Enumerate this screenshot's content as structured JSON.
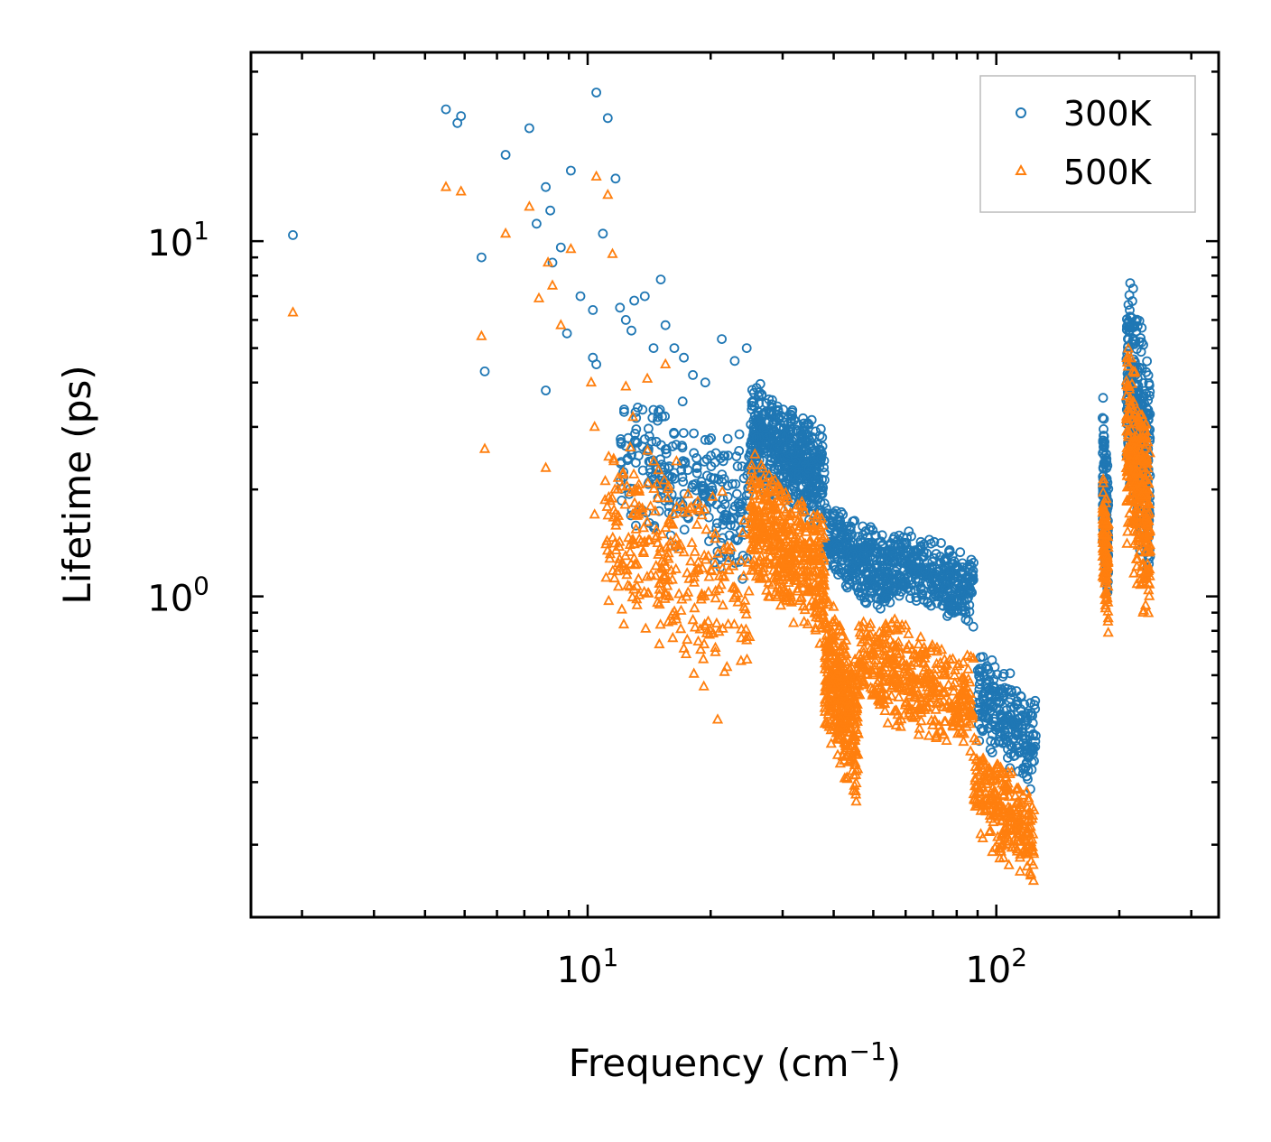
{
  "chart_data": {
    "type": "scatter",
    "xscale": "log",
    "yscale": "log",
    "xlabel": "Frequency (cm",
    "xlabel_sup": "−1",
    "xlabel_end": ")",
    "ylabel": "Lifetime (ps)",
    "xlim": [
      1.5,
      350
    ],
    "ylim": [
      0.125,
      34
    ],
    "xticks": [
      {
        "base": "10",
        "exp": "1",
        "value": 10
      },
      {
        "base": "10",
        "exp": "2",
        "value": 100
      }
    ],
    "yticks": [
      {
        "base": "10",
        "exp": "0",
        "value": 1
      },
      {
        "base": "10",
        "exp": "1",
        "value": 10
      }
    ],
    "legend": {
      "position": "top-right",
      "entries": [
        "300K",
        "500K"
      ]
    },
    "colors": {
      "300K": "#1f77b4",
      "500K": "#ff7f0e"
    },
    "series": [
      {
        "name": "300K",
        "marker": "circle",
        "points": [
          [
            1.9,
            10.4
          ],
          [
            4.5,
            23.5
          ],
          [
            4.8,
            21.5
          ],
          [
            4.9,
            22.5
          ],
          [
            5.5,
            9.0
          ],
          [
            5.6,
            4.3
          ],
          [
            6.3,
            17.5
          ],
          [
            7.2,
            20.8
          ],
          [
            7.5,
            11.2
          ],
          [
            7.9,
            14.2
          ],
          [
            7.9,
            3.8
          ],
          [
            8.1,
            12.2
          ],
          [
            8.2,
            8.7
          ],
          [
            8.6,
            9.6
          ],
          [
            8.9,
            5.5
          ],
          [
            9.1,
            15.8
          ],
          [
            9.6,
            7.0
          ],
          [
            10.3,
            6.4
          ],
          [
            10.3,
            4.7
          ],
          [
            10.5,
            4.5
          ],
          [
            10.5,
            26.2
          ],
          [
            10.9,
            10.5
          ],
          [
            11.2,
            22.2
          ],
          [
            11.7,
            15.0
          ],
          [
            12.0,
            6.5
          ],
          [
            12.4,
            6.0
          ],
          [
            12.8,
            5.6
          ],
          [
            13.0,
            6.8
          ],
          [
            13.8,
            7.0
          ],
          [
            14.5,
            5.0
          ],
          [
            15.1,
            7.8
          ],
          [
            15.5,
            5.8
          ],
          [
            16.3,
            5.0
          ],
          [
            17.2,
            4.7
          ],
          [
            18.1,
            4.2
          ],
          [
            19.4,
            4.0
          ],
          [
            21.3,
            5.3
          ],
          [
            22.9,
            4.6
          ],
          [
            24.5,
            5.0
          ]
        ],
        "clusters": [
          {
            "x": [
              12,
              25
            ],
            "y": [
              1.0,
              4.5
            ],
            "n": 260
          },
          {
            "x": [
              25,
              38
            ],
            "y": [
              1.5,
              4.2
            ],
            "n": 520
          },
          {
            "x": [
              38,
              55
            ],
            "y": [
              0.85,
              1.9
            ],
            "n": 320
          },
          {
            "x": [
              55,
              88
            ],
            "y": [
              0.8,
              1.65
            ],
            "n": 360
          },
          {
            "x": [
              90,
              125
            ],
            "y": [
              0.27,
              0.75
            ],
            "n": 240
          },
          {
            "x": [
              182,
              188
            ],
            "y": [
              0.8,
              4.0
            ],
            "n": 120
          },
          {
            "x": [
              208,
              238
            ],
            "y": [
              1.0,
              9.2
            ],
            "n": 360
          }
        ]
      },
      {
        "name": "500K",
        "marker": "triangle",
        "points": [
          [
            1.9,
            6.3
          ],
          [
            4.5,
            14.2
          ],
          [
            4.9,
            13.8
          ],
          [
            5.5,
            5.4
          ],
          [
            5.6,
            2.6
          ],
          [
            6.3,
            10.5
          ],
          [
            7.2,
            12.5
          ],
          [
            7.6,
            6.9
          ],
          [
            7.9,
            2.3
          ],
          [
            8.0,
            8.7
          ],
          [
            8.2,
            7.5
          ],
          [
            8.6,
            5.8
          ],
          [
            9.1,
            9.5
          ],
          [
            10.2,
            4.0
          ],
          [
            10.4,
            3.0
          ],
          [
            10.5,
            15.2
          ],
          [
            10.4,
            1.7
          ],
          [
            11.2,
            13.5
          ],
          [
            11.5,
            9.2
          ],
          [
            11.6,
            1.75
          ],
          [
            12.4,
            3.9
          ],
          [
            12.9,
            3.2
          ],
          [
            14.0,
            4.1
          ],
          [
            15.5,
            4.5
          ],
          [
            16.5,
            2.4
          ],
          [
            17.0,
            0.98
          ],
          [
            18.6,
            1.85
          ],
          [
            20.8,
            0.45
          ],
          [
            23.0,
            1.05
          ]
        ],
        "clusters": [
          {
            "x": [
              11,
              25
            ],
            "y": [
              0.45,
              3.3
            ],
            "n": 300
          },
          {
            "x": [
              25,
              38
            ],
            "y": [
              0.7,
              2.6
            ],
            "n": 480
          },
          {
            "x": [
              38,
              46
            ],
            "y": [
              0.24,
              1.1
            ],
            "n": 360
          },
          {
            "x": [
              46,
              88
            ],
            "y": [
              0.33,
              1.0
            ],
            "n": 440
          },
          {
            "x": [
              88,
              124
            ],
            "y": [
              0.15,
              0.42
            ],
            "n": 260
          },
          {
            "x": [
              182,
              188
            ],
            "y": [
              0.75,
              2.4
            ],
            "n": 110
          },
          {
            "x": [
              208,
              238
            ],
            "y": [
              0.72,
              5.8
            ],
            "n": 320
          }
        ]
      }
    ]
  }
}
